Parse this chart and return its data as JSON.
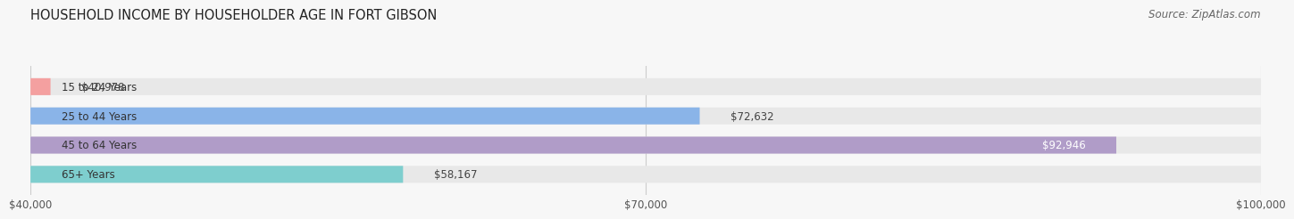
{
  "title": "HOUSEHOLD INCOME BY HOUSEHOLDER AGE IN FORT GIBSON",
  "source": "Source: ZipAtlas.com",
  "categories": [
    "15 to 24 Years",
    "25 to 44 Years",
    "45 to 64 Years",
    "65+ Years"
  ],
  "values": [
    40978,
    72632,
    92946,
    58167
  ],
  "bar_colors": [
    "#f4a0a0",
    "#8ab4e8",
    "#b09cc8",
    "#7ecece"
  ],
  "track_color": "#e8e8e8",
  "x_min": 40000,
  "x_max": 100000,
  "x_ticks": [
    40000,
    70000,
    100000
  ],
  "x_tick_labels": [
    "$40,000",
    "$70,000",
    "$100,000"
  ],
  "value_labels": [
    "$40,978",
    "$72,632",
    "$92,946",
    "$58,167"
  ],
  "background_color": "#f7f7f7",
  "bar_height": 0.58,
  "title_fontsize": 10.5,
  "label_fontsize": 8.5,
  "tick_fontsize": 8.5,
  "source_fontsize": 8.5
}
